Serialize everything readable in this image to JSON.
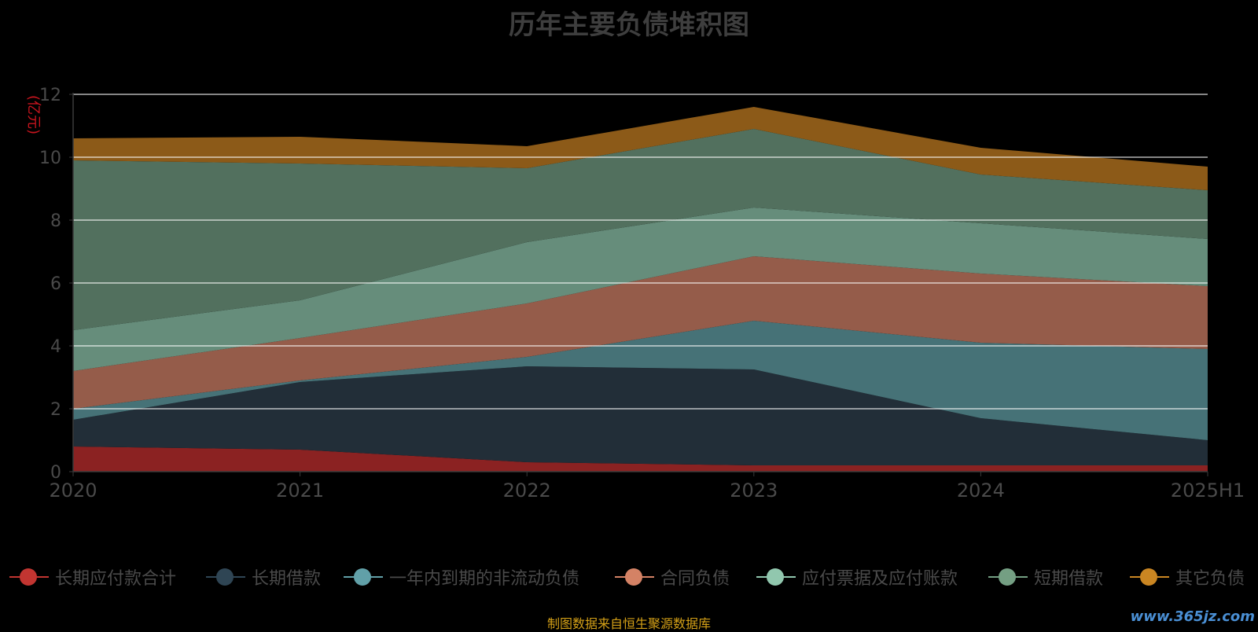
{
  "chart_data": {
    "type": "area",
    "title": "历年主要负债堆积图",
    "ylabel": "(亿元)",
    "categories": [
      "2020",
      "2021",
      "2022",
      "2023",
      "2024",
      "2025H1"
    ],
    "ylim": [
      0,
      12
    ],
    "yticks": [
      0,
      2,
      4,
      6,
      8,
      10,
      12
    ],
    "stacked": true,
    "grid": true,
    "legend_position": "bottom",
    "series": [
      {
        "name": "长期应付款合计",
        "color": "#8b2222",
        "legend_color": "#c23531",
        "values": [
          0.8,
          0.7,
          0.3,
          0.2,
          0.2,
          0.2
        ]
      },
      {
        "name": "长期借款",
        "color": "#222e38",
        "legend_color": "#2f4554",
        "values": [
          0.85,
          2.15,
          3.05,
          3.05,
          1.5,
          0.8
        ]
      },
      {
        "name": "一年内到期的非流动负债",
        "color": "#467277",
        "legend_color": "#61a0a8",
        "values": [
          0.35,
          0.05,
          0.3,
          1.55,
          2.4,
          2.9
        ]
      },
      {
        "name": "合同负债",
        "color": "#955c4a",
        "legend_color": "#d48265",
        "values": [
          1.2,
          1.35,
          1.7,
          2.05,
          2.2,
          2.0
        ]
      },
      {
        "name": "应付票据及应付账款",
        "color": "#668d7b",
        "legend_color": "#91c7ae",
        "values": [
          1.3,
          1.2,
          1.95,
          1.55,
          1.6,
          1.5
        ]
      },
      {
        "name": "短期借款",
        "color": "#52705e",
        "legend_color": "#749f83",
        "values": [
          5.4,
          4.35,
          2.35,
          2.5,
          1.55,
          1.55
        ]
      },
      {
        "name": "其它负债",
        "color": "#8c5a18",
        "legend_color": "#ca8622",
        "values": [
          0.7,
          0.85,
          0.7,
          0.7,
          0.85,
          0.75
        ]
      }
    ]
  },
  "footer": {
    "source": "制图数据来自恒生聚源数据库",
    "watermark": "www.365jz.com"
  }
}
